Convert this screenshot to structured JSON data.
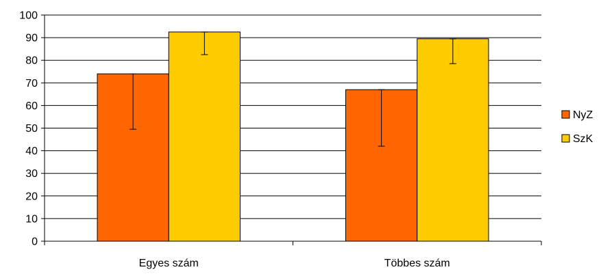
{
  "chart_data": {
    "type": "bar",
    "title": "",
    "xlabel": "",
    "ylabel": "",
    "categories": [
      "Egyes szám",
      "Többes szám"
    ],
    "series": [
      {
        "name": "NyZ",
        "color": "#FF6600",
        "values": [
          74,
          67
        ],
        "error_low": [
          49.5,
          42
        ],
        "error_high": [
          74,
          67
        ]
      },
      {
        "name": "SzK",
        "color": "#FFCC00",
        "values": [
          92.5,
          89.5
        ],
        "error_low": [
          82.5,
          78.5
        ],
        "error_high": [
          92.5,
          89.5
        ]
      }
    ],
    "ylim": [
      0,
      100
    ],
    "yticks": [
      0,
      10,
      20,
      30,
      40,
      50,
      60,
      70,
      80,
      90,
      100
    ],
    "grid": true,
    "legend_position": "right"
  }
}
